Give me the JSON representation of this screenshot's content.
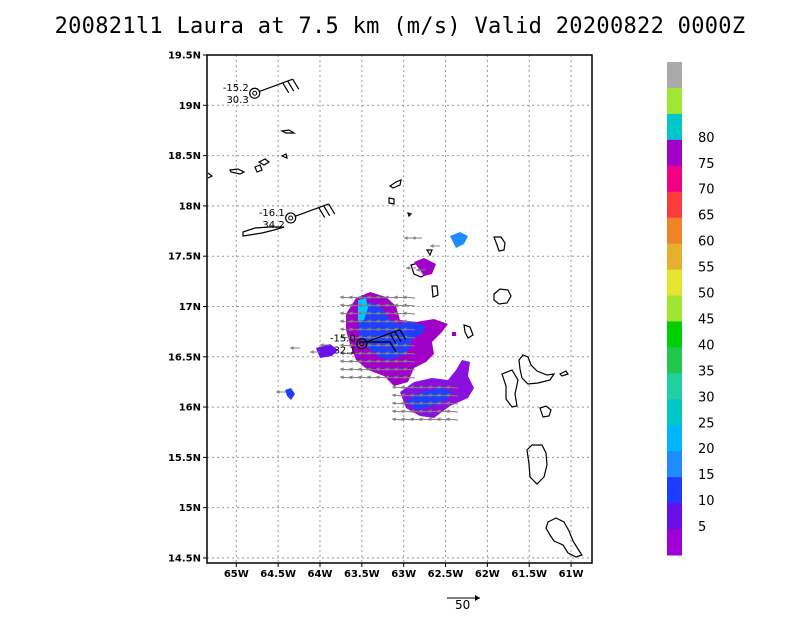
{
  "title": "200821l1 Laura at 7.5 km (m/s) Valid 20200822 0000Z",
  "lat_ticks": [
    "19.5N",
    "19N",
    "18.5N",
    "18N",
    "17.5N",
    "17N",
    "16.5N",
    "16N",
    "15.5N",
    "15N",
    "14.5N"
  ],
  "lon_ticks": [
    "65W",
    "64.5W",
    "64W",
    "63.5W",
    "63W",
    "62.5W",
    "62W",
    "61.5W",
    "61W"
  ],
  "lat_range": [
    14.45,
    19.5
  ],
  "lon_range": [
    -65.35,
    -60.75
  ],
  "colorbar": {
    "labels": [
      "5",
      "10",
      "15",
      "20",
      "25",
      "30",
      "35",
      "40",
      "45",
      "50",
      "55",
      "60",
      "65",
      "70",
      "75",
      "80"
    ],
    "colors": [
      "#a000d8",
      "#6a0ee8",
      "#1e3cff",
      "#1e8cff",
      "#00b4ff",
      "#00c8c8",
      "#20d0a0",
      "#20c850",
      "#00d000",
      "#a0e630",
      "#e6e632",
      "#e6af2d",
      "#f08228",
      "#fa3c3c",
      "#f00082",
      "#a000c8",
      "#00c8c8",
      "#a0e632",
      "#aaaaaa"
    ]
  },
  "observations": [
    {
      "top": "-15.2",
      "bottom": "30.3",
      "lat": 19.12,
      "lon": -64.78
    },
    {
      "top": "-16.1",
      "bottom": "34.2",
      "lat": 17.88,
      "lon": -64.35
    },
    {
      "top": "-15.0",
      "bottom": "32.1",
      "lat": 16.63,
      "lon": -63.5
    }
  ],
  "reference_vector_label": "50"
}
